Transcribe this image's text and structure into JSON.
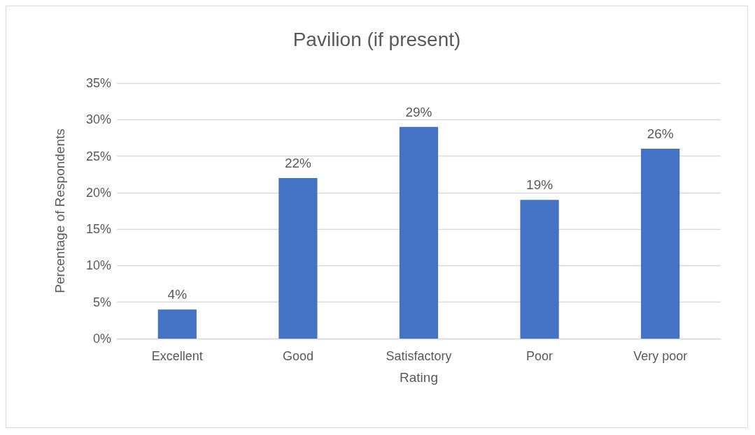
{
  "chart_data": {
    "type": "bar",
    "title": "Pavilion (if present)",
    "xlabel": "Rating",
    "ylabel": "Percentage of Respondents",
    "categories": [
      "Excellent",
      "Good",
      "Satisfactory",
      "Poor",
      "Very poor"
    ],
    "values": [
      4,
      22,
      29,
      19,
      26
    ],
    "value_labels": [
      "4%",
      "22%",
      "29%",
      "19%",
      "26%"
    ],
    "color": "#4472c4",
    "ylim": [
      0,
      35
    ],
    "yticks": [
      {
        "value": 0,
        "label": "0%"
      },
      {
        "value": 5,
        "label": "5%"
      },
      {
        "value": 10,
        "label": "10%"
      },
      {
        "value": 15,
        "label": "15%"
      },
      {
        "value": 20,
        "label": "20%"
      },
      {
        "value": 25,
        "label": "25%"
      },
      {
        "value": 30,
        "label": "30%"
      },
      {
        "value": 35,
        "label": "35%"
      }
    ],
    "grid": "y"
  }
}
